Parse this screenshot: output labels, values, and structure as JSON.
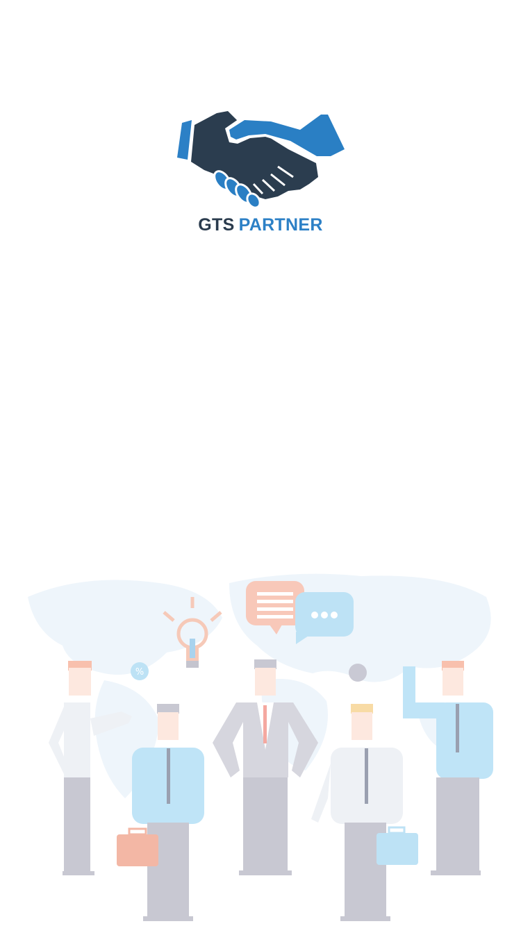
{
  "app": {
    "name_part1": "GTS",
    "name_part2": "PARTNER"
  },
  "logo": {
    "icon": "handshake-icon"
  },
  "illustration": {
    "icons": [
      "world-map",
      "light-bulb-icon",
      "speech-bubble-icon",
      "chat-bubble-icon",
      "percent-badge-icon",
      "briefcase-icon"
    ],
    "badge_text": "%"
  },
  "colors": {
    "brand_dark": "#2a3b4d",
    "brand_blue": "#2c80c6",
    "background": "#ffffff"
  }
}
